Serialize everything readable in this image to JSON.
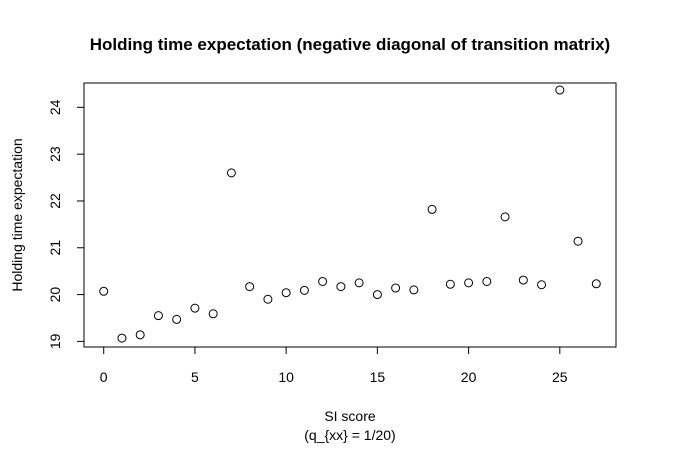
{
  "chart_data": {
    "type": "scatter",
    "title": "Holding time expectation (negative diagonal of transition matrix)",
    "xlabel": "SI score",
    "xlabel2": "(q_{xx} = 1/20)",
    "ylabel": "Holding time expectation",
    "xlim": [
      -1.08,
      28.08
    ],
    "ylim": [
      18.88,
      24.52
    ],
    "xticks": [
      0,
      5,
      10,
      15,
      20,
      25
    ],
    "yticks": [
      19,
      20,
      21,
      22,
      23,
      24
    ],
    "grid": false,
    "legend": "none",
    "x": [
      0,
      1,
      2,
      3,
      4,
      5,
      6,
      7,
      8,
      9,
      10,
      11,
      12,
      13,
      14,
      15,
      16,
      17,
      18,
      19,
      20,
      21,
      22,
      23,
      24,
      25,
      26,
      27
    ],
    "y": [
      20.07,
      19.07,
      19.14,
      19.55,
      19.47,
      19.71,
      19.59,
      22.6,
      20.17,
      19.9,
      20.04,
      20.09,
      20.28,
      20.17,
      20.25,
      20.0,
      20.14,
      20.1,
      21.82,
      20.22,
      20.25,
      20.28,
      21.66,
      20.31,
      20.21,
      24.37,
      21.14,
      20.23
    ]
  }
}
